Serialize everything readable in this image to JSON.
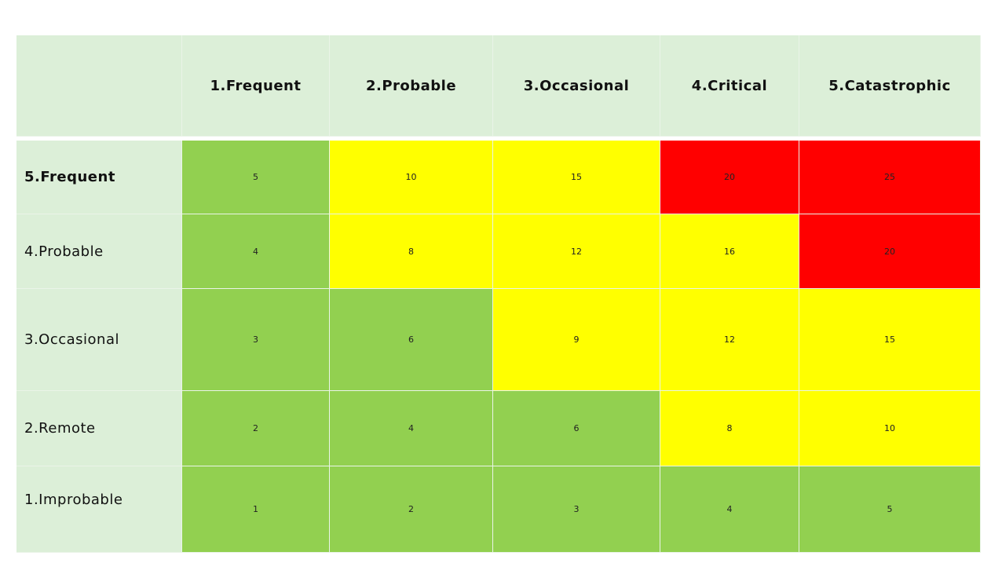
{
  "colors": {
    "header_bg": "#dcefd8",
    "low": "#92d050",
    "medium": "#ffff00",
    "high": "#ff0000"
  },
  "columns": [
    "1.Frequent",
    "2.Probable",
    "3.Occasional",
    "4.Critical",
    "5.Catastrophic"
  ],
  "rows": [
    {
      "label": "5.Frequent",
      "values": [
        "5",
        "10",
        "15",
        "20",
        "25"
      ],
      "levels": [
        "low",
        "medium",
        "medium",
        "high",
        "high"
      ]
    },
    {
      "label": "4.Probable",
      "values": [
        "4",
        "8",
        "12",
        "16",
        "20"
      ],
      "levels": [
        "low",
        "medium",
        "medium",
        "medium",
        "high"
      ]
    },
    {
      "label": "3.Occasional",
      "values": [
        "3",
        "6",
        "9",
        "12",
        "15"
      ],
      "levels": [
        "low",
        "low",
        "medium",
        "medium",
        "medium"
      ]
    },
    {
      "label": "2.Remote",
      "values": [
        "2",
        "4",
        "6",
        "8",
        "10"
      ],
      "levels": [
        "low",
        "low",
        "low",
        "medium",
        "medium"
      ]
    },
    {
      "label": "1.Improbable",
      "values": [
        "1",
        "2",
        "3",
        "4",
        "5"
      ],
      "levels": [
        "low",
        "low",
        "low",
        "low",
        "low"
      ]
    }
  ]
}
